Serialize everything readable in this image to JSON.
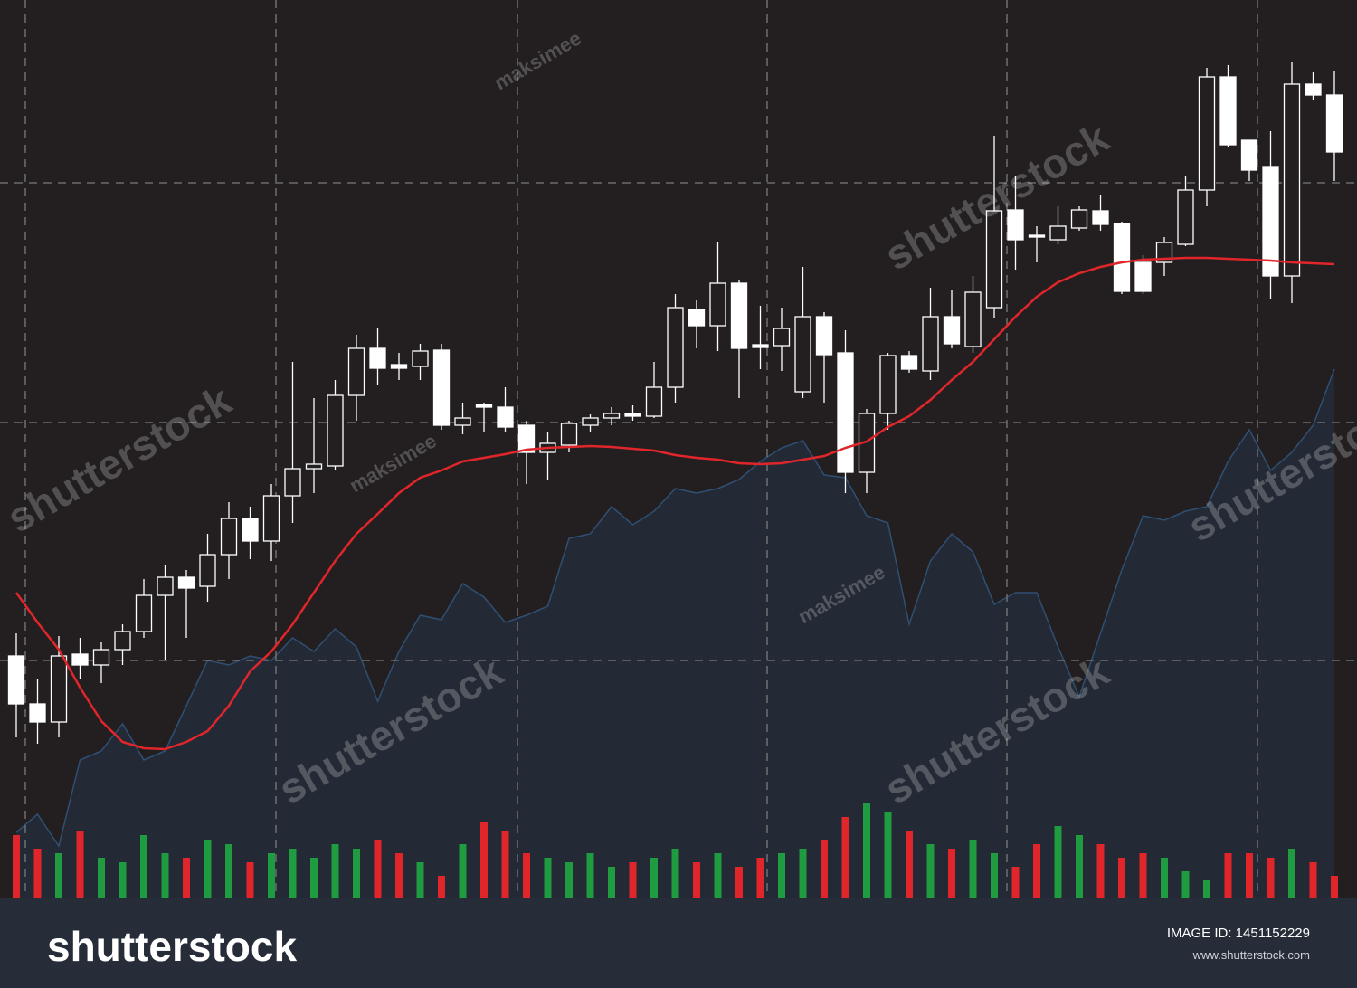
{
  "chart_data": {
    "type": "candlestick",
    "ylim": [
      7,
      1000
    ],
    "y2lim": [
      0,
      993
    ],
    "up_color": "#231f20",
    "down_color": "#ffffff",
    "wick_color": "#ffffff",
    "open": [
      275,
      222,
      202,
      277,
      265,
      282,
      302,
      342,
      362,
      352,
      387,
      427,
      402,
      452,
      482,
      485,
      563,
      615,
      597,
      595,
      613,
      530,
      553,
      550,
      530,
      500,
      508,
      530,
      538,
      543,
      540,
      572,
      658,
      640,
      687,
      619,
      618,
      567,
      650,
      610,
      478,
      543,
      607,
      590,
      650,
      617,
      660,
      768,
      740,
      735,
      748,
      767,
      753,
      710,
      710,
      730,
      790,
      915,
      845,
      815,
      695,
      907,
      895
    ],
    "high": [
      300,
      250,
      297,
      295,
      290,
      310,
      360,
      375,
      370,
      410,
      445,
      440,
      465,
      600,
      560,
      580,
      630,
      638,
      610,
      620,
      620,
      555,
      555,
      572,
      535,
      522,
      535,
      542,
      550,
      552,
      600,
      675,
      668,
      732,
      690,
      662,
      660,
      705,
      655,
      635,
      548,
      610,
      612,
      682,
      680,
      695,
      850,
      805,
      750,
      772,
      772,
      785,
      755,
      718,
      738,
      805,
      925,
      928,
      845,
      855,
      932,
      920,
      922
    ],
    "low": [
      185,
      178,
      185,
      250,
      245,
      265,
      295,
      270,
      295,
      335,
      360,
      382,
      380,
      422,
      455,
      480,
      535,
      575,
      580,
      580,
      525,
      520,
      522,
      522,
      465,
      470,
      500,
      522,
      530,
      535,
      538,
      555,
      615,
      612,
      560,
      592,
      590,
      560,
      555,
      455,
      455,
      525,
      588,
      580,
      615,
      610,
      648,
      702,
      710,
      730,
      745,
      745,
      675,
      675,
      695,
      728,
      772,
      837,
      800,
      670,
      665,
      890,
      800
    ],
    "close": [
      222,
      202,
      275,
      265,
      282,
      302,
      342,
      362,
      350,
      387,
      427,
      402,
      452,
      482,
      487,
      563,
      615,
      593,
      593,
      612,
      530,
      538,
      550,
      528,
      500,
      510,
      532,
      538,
      543,
      540,
      572,
      660,
      640,
      687,
      615,
      616,
      637,
      650,
      608,
      478,
      543,
      607,
      592,
      650,
      620,
      677,
      767,
      735,
      738,
      750,
      768,
      752,
      678,
      678,
      732,
      790,
      915,
      840,
      812,
      695,
      907,
      895,
      832
    ],
    "ma": {
      "color": "#e0262b",
      "values": [
        345,
        312,
        282,
        240,
        203,
        180,
        173,
        172,
        180,
        192,
        220,
        258,
        280,
        310,
        345,
        380,
        410,
        432,
        455,
        472,
        480,
        490,
        494,
        498,
        503,
        505,
        506,
        507,
        506,
        504,
        502,
        497,
        494,
        492,
        488,
        487,
        488,
        492,
        496,
        505,
        512,
        528,
        540,
        558,
        580,
        600,
        625,
        650,
        672,
        688,
        698,
        705,
        710,
        713,
        714,
        715,
        715,
        714,
        713,
        712,
        710,
        709,
        708
      ]
    },
    "area": {
      "color": "#232a35",
      "line_color": "#2f4f73",
      "values": [
        80,
        100,
        65,
        160,
        170,
        200,
        160,
        170,
        220,
        270,
        265,
        275,
        270,
        295,
        280,
        305,
        285,
        225,
        280,
        320,
        315,
        355,
        340,
        312,
        320,
        330,
        405,
        410,
        440,
        420,
        435,
        460,
        455,
        460,
        470,
        490,
        505,
        513,
        475,
        472,
        430,
        422,
        310,
        380,
        410,
        390,
        332,
        345,
        345,
        285,
        230,
        300,
        370,
        430,
        425,
        435,
        440,
        490,
        525,
        480,
        500,
        530,
        592
      ]
    },
    "volume": {
      "axis": "y2",
      "up_color": "#1e9c3f",
      "down_color": "#e0262b",
      "values": [
        70,
        55,
        50,
        75,
        45,
        40,
        70,
        50,
        45,
        65,
        60,
        40,
        50,
        55,
        45,
        60,
        55,
        65,
        50,
        40,
        25,
        60,
        85,
        75,
        50,
        45,
        40,
        50,
        35,
        40,
        45,
        55,
        40,
        50,
        35,
        45,
        50,
        55,
        65,
        90,
        105,
        95,
        75,
        60,
        55,
        65,
        50,
        35,
        60,
        80,
        70,
        60,
        45,
        50,
        45,
        30,
        20,
        50,
        50,
        45,
        55,
        40,
        25
      ]
    }
  },
  "watermarks": [
    "shutterstock",
    "maksimee"
  ],
  "footer": {
    "logo": "shutterstock",
    "image_id": "IMAGE ID: 1451152229",
    "site": "www.shutterstock.com"
  }
}
